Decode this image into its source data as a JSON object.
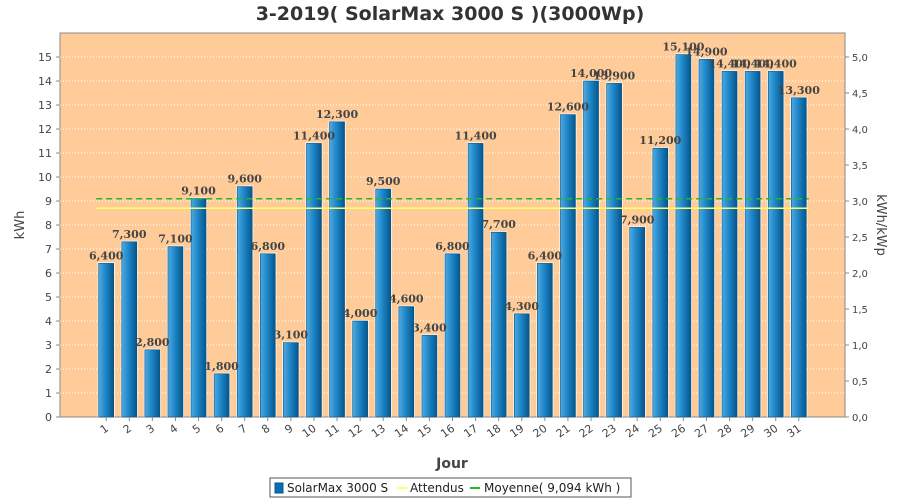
{
  "chart_data": {
    "type": "bar",
    "title": "3-2019( SolarMax 3000 S )(3000Wp)",
    "xlabel": "Jour",
    "ylabel": "kWh",
    "y2label": "kWh/kWp",
    "categories": [
      "1",
      "2",
      "3",
      "4",
      "5",
      "6",
      "7",
      "8",
      "9",
      "10",
      "11",
      "12",
      "13",
      "14",
      "15",
      "16",
      "17",
      "18",
      "19",
      "20",
      "21",
      "22",
      "23",
      "24",
      "25",
      "26",
      "27",
      "28",
      "29",
      "30",
      "31"
    ],
    "series": [
      {
        "name": "SolarMax 3000 S",
        "values": [
          6.4,
          7.3,
          2.8,
          7.1,
          9.1,
          1.8,
          9.6,
          6.8,
          3.1,
          11.4,
          12.3,
          4.0,
          9.5,
          4.6,
          3.4,
          6.8,
          11.4,
          7.7,
          4.3,
          6.4,
          12.6,
          14.0,
          13.9,
          7.9,
          11.2,
          15.1,
          14.9,
          14.4,
          14.4,
          14.4,
          13.3
        ]
      }
    ],
    "data_labels": [
      "6,400",
      "7,300",
      "2,800",
      "7,100",
      "9,100",
      "1,800",
      "9,600",
      "6,800",
      "3,100",
      "11,400",
      "12,300",
      "4,000",
      "9,500",
      "4,600",
      "3,400",
      "6,800",
      "11,400",
      "7,700",
      "4,300",
      "6,400",
      "12,600",
      "14,000",
      "13,900",
      "7,900",
      "11,200",
      "15,100",
      "14,900",
      "14,400",
      "14,400",
      "14,400",
      "13,300"
    ],
    "attendus": 8.7,
    "moyenne": 9.094,
    "ylim": [
      0,
      16
    ],
    "yticks": [
      "0",
      "1",
      "2",
      "3",
      "4",
      "5",
      "6",
      "7",
      "8",
      "9",
      "10",
      "11",
      "12",
      "13",
      "14",
      "15"
    ],
    "y2lim": [
      0,
      5.333
    ],
    "y2ticks": [
      "0,0",
      "0,5",
      "1,0",
      "1,5",
      "2,0",
      "2,5",
      "3,0",
      "3,5",
      "4,0",
      "4,5",
      "5,0"
    ],
    "legend": {
      "position": "bottom",
      "entries": [
        "SolarMax 3000 S",
        "Attendus",
        "Moyenne( 9,094 kWh )"
      ]
    },
    "colors": {
      "plot_bg": "#FFCC99",
      "bar": "#0A6FB0",
      "bar_light": "#4FAAE0",
      "attendus": "#FFFF66",
      "moyenne": "#22BB22"
    }
  }
}
